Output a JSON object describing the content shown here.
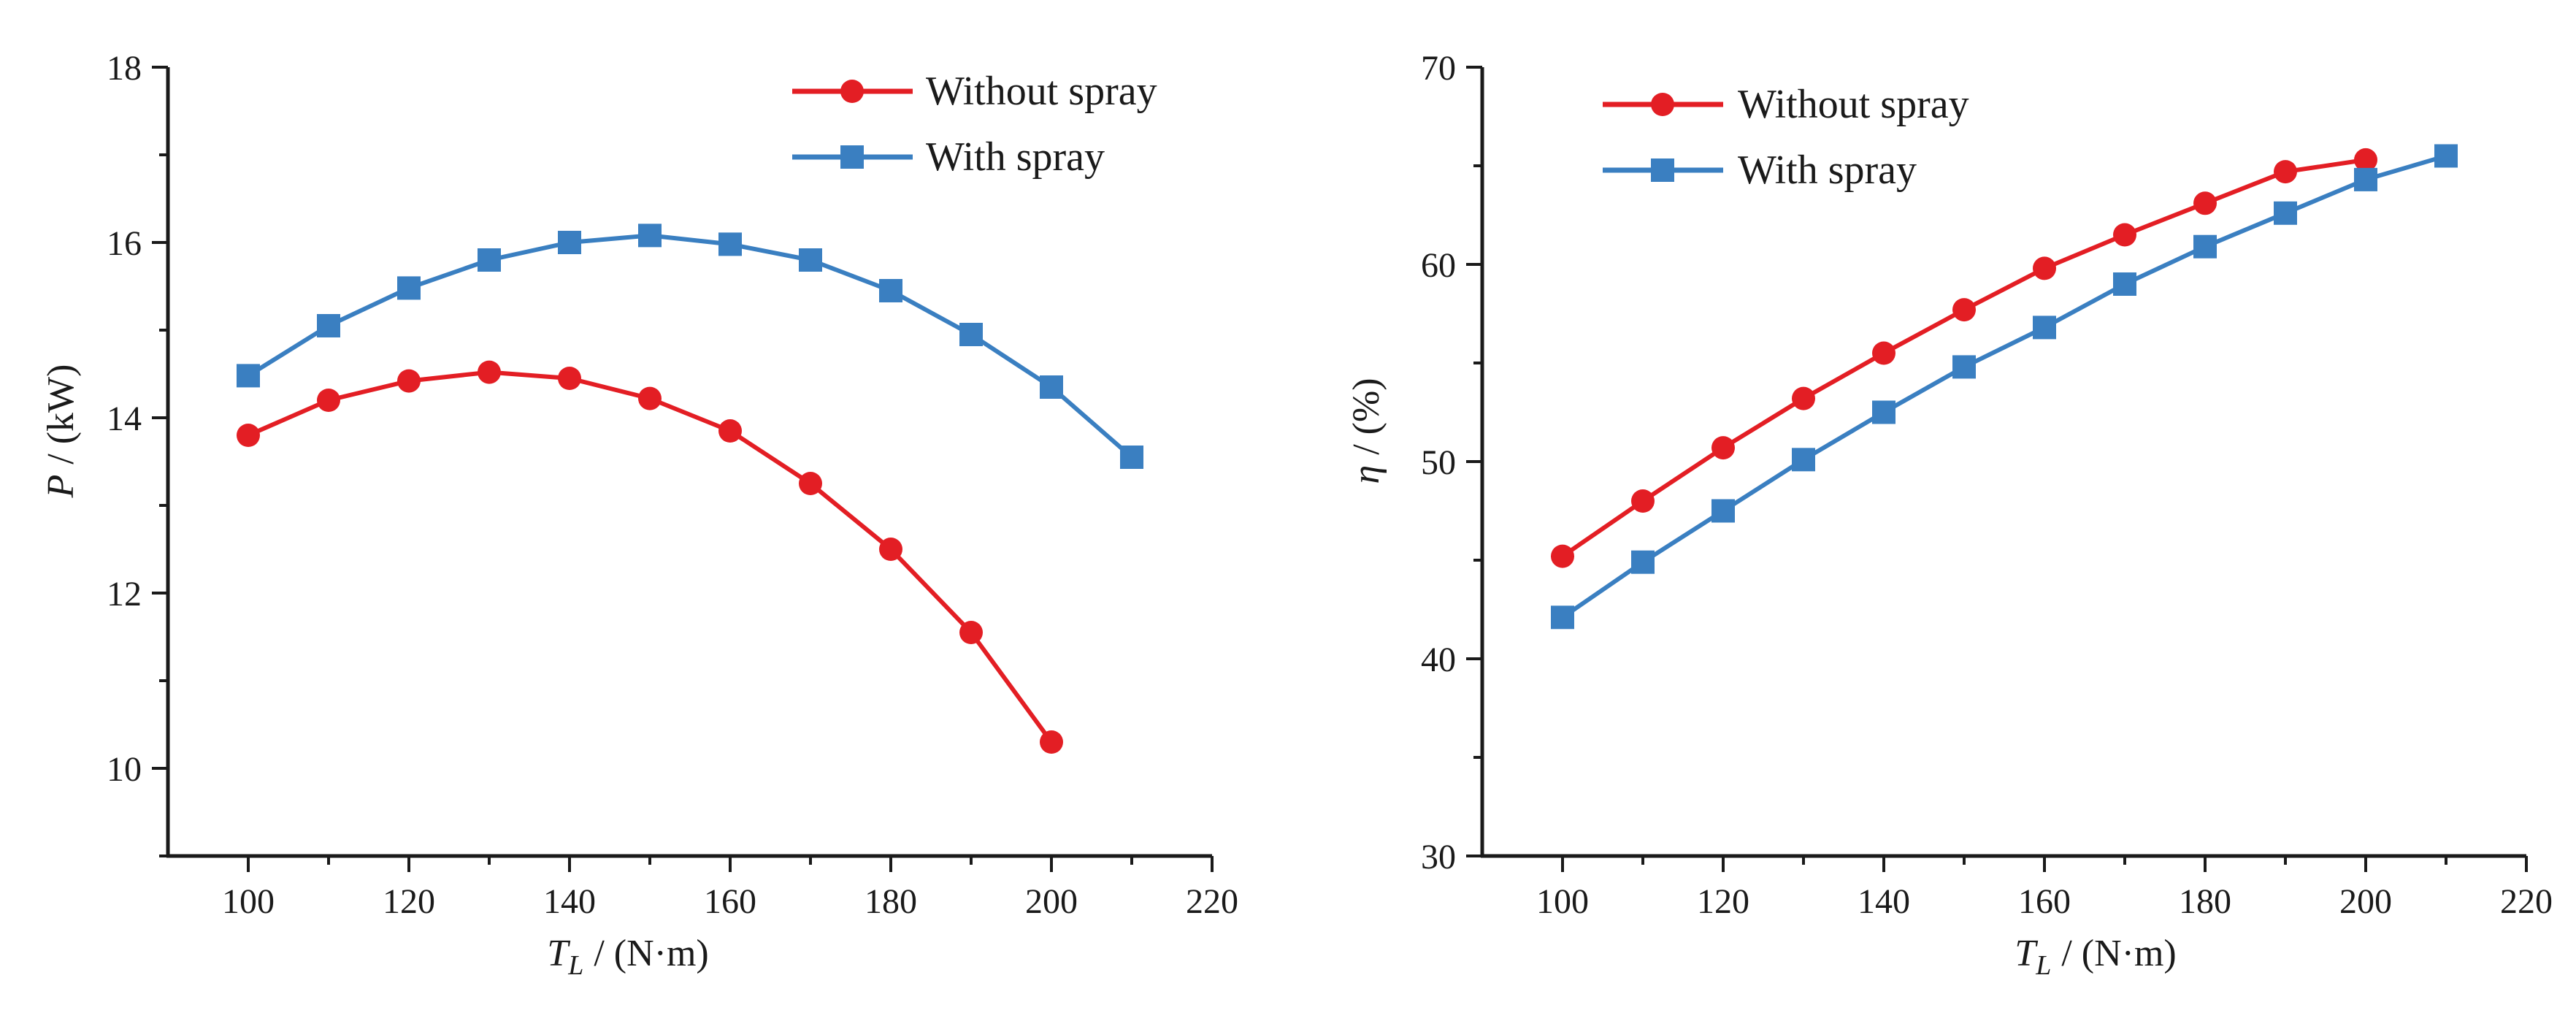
{
  "colors": {
    "red": "#e31e24",
    "blue": "#3a7fc1",
    "axis": "#1a1a1a"
  },
  "chart_data": [
    {
      "type": "line",
      "xlabel_symbol": "T",
      "xlabel_subscript": "L",
      "xlabel_unit": "/ (N·m)",
      "ylabel_symbol": "P",
      "ylabel_unit": "/ (kW)",
      "xlim": [
        90,
        220
      ],
      "ylim": [
        9,
        18
      ],
      "x_ticks": [
        "100",
        "120",
        "140",
        "160",
        "180",
        "200",
        "220"
      ],
      "y_ticks": [
        "10",
        "12",
        "14",
        "16",
        "18"
      ],
      "legend_position": "top-right",
      "series": [
        {
          "name": "Without spray",
          "marker": "circle",
          "color": "#e31e24",
          "x": [
            100,
            110,
            120,
            130,
            140,
            150,
            160,
            170,
            180,
            190,
            200
          ],
          "y": [
            13.8,
            14.2,
            14.42,
            14.52,
            14.45,
            14.22,
            13.85,
            13.25,
            12.5,
            11.55,
            10.3
          ]
        },
        {
          "name": "With spray",
          "marker": "square",
          "color": "#3a7fc1",
          "x": [
            100,
            110,
            120,
            130,
            140,
            150,
            160,
            170,
            180,
            190,
            200,
            210
          ],
          "y": [
            14.48,
            15.05,
            15.48,
            15.8,
            16.0,
            16.08,
            15.98,
            15.8,
            15.45,
            14.95,
            14.35,
            13.55
          ]
        }
      ]
    },
    {
      "type": "line",
      "xlabel_symbol": "T",
      "xlabel_subscript": "L",
      "xlabel_unit": "/ (N·m)",
      "ylabel_symbol": "η",
      "ylabel_unit": "/ (%)",
      "xlim": [
        90,
        220
      ],
      "ylim": [
        30,
        70
      ],
      "x_ticks": [
        "100",
        "120",
        "140",
        "160",
        "180",
        "200",
        "220"
      ],
      "y_ticks": [
        "30",
        "40",
        "50",
        "60",
        "70"
      ],
      "legend_position": "top-left",
      "series": [
        {
          "name": "Without spray",
          "marker": "circle",
          "color": "#e31e24",
          "x": [
            100,
            110,
            120,
            130,
            140,
            150,
            160,
            170,
            180,
            190,
            200
          ],
          "y": [
            45.2,
            48.0,
            50.7,
            53.2,
            55.5,
            57.7,
            59.8,
            61.5,
            63.1,
            64.7,
            65.3
          ]
        },
        {
          "name": "With spray",
          "marker": "square",
          "color": "#3a7fc1",
          "x": [
            100,
            110,
            120,
            130,
            140,
            150,
            160,
            170,
            180,
            190,
            200,
            210
          ],
          "y": [
            42.1,
            44.9,
            47.5,
            50.1,
            52.5,
            54.8,
            56.8,
            59.0,
            60.9,
            62.6,
            64.3,
            65.5
          ]
        }
      ]
    }
  ]
}
